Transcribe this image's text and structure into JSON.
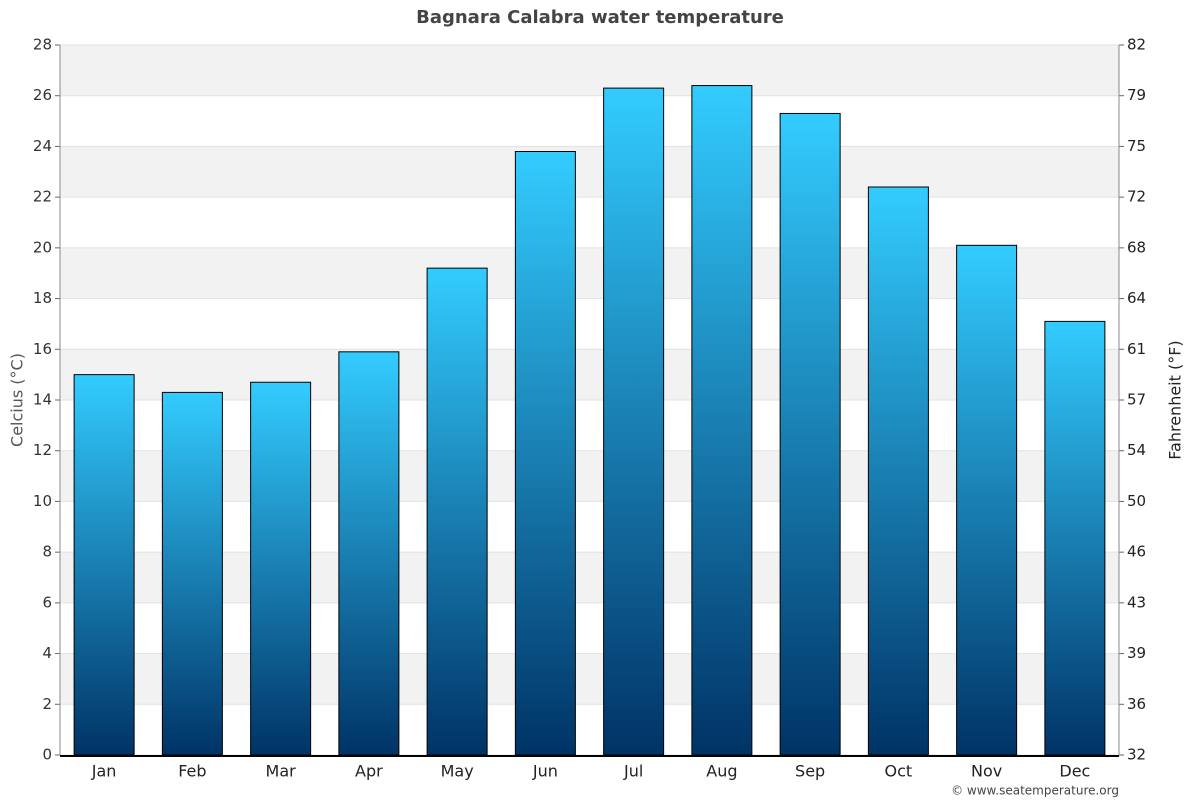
{
  "chart_data": {
    "type": "bar",
    "title": "Bagnara Calabra water temperature",
    "categories": [
      "Jan",
      "Feb",
      "Mar",
      "Apr",
      "May",
      "Jun",
      "Jul",
      "Aug",
      "Sep",
      "Oct",
      "Nov",
      "Dec"
    ],
    "values": [
      15.0,
      14.3,
      14.7,
      15.9,
      19.2,
      23.8,
      26.3,
      26.4,
      25.3,
      22.4,
      20.1,
      17.1
    ],
    "gradient": [
      "#33ccff",
      "#003366"
    ],
    "y_label": "Celcius (°C)",
    "y2_label": "Fahrenheit (°F)",
    "ylim": [
      0,
      28
    ],
    "yticks": [
      0,
      2,
      4,
      6,
      8,
      10,
      12,
      14,
      16,
      18,
      20,
      22,
      24,
      26,
      28
    ],
    "y2lim": [
      32,
      82.4
    ],
    "y2ticks": [
      32,
      {
        "value": 35.6,
        "label": "36"
      },
      {
        "value": 39.2,
        "label": "39"
      },
      {
        "value": 42.8,
        "label": "43"
      },
      {
        "value": 46.4,
        "label": "46"
      },
      50,
      {
        "value": 53.6,
        "label": "54"
      },
      {
        "value": 57.2,
        "label": "57"
      },
      {
        "value": 60.8,
        "label": "61"
      },
      {
        "value": 64.4,
        "label": "64"
      },
      68,
      {
        "value": 71.6,
        "label": "72"
      },
      {
        "value": 75.2,
        "label": "75"
      },
      {
        "value": 78.8,
        "label": "79"
      },
      {
        "value": 82.4,
        "label": "82"
      }
    ],
    "grid": true,
    "source": "© www.seatemperature.org"
  }
}
